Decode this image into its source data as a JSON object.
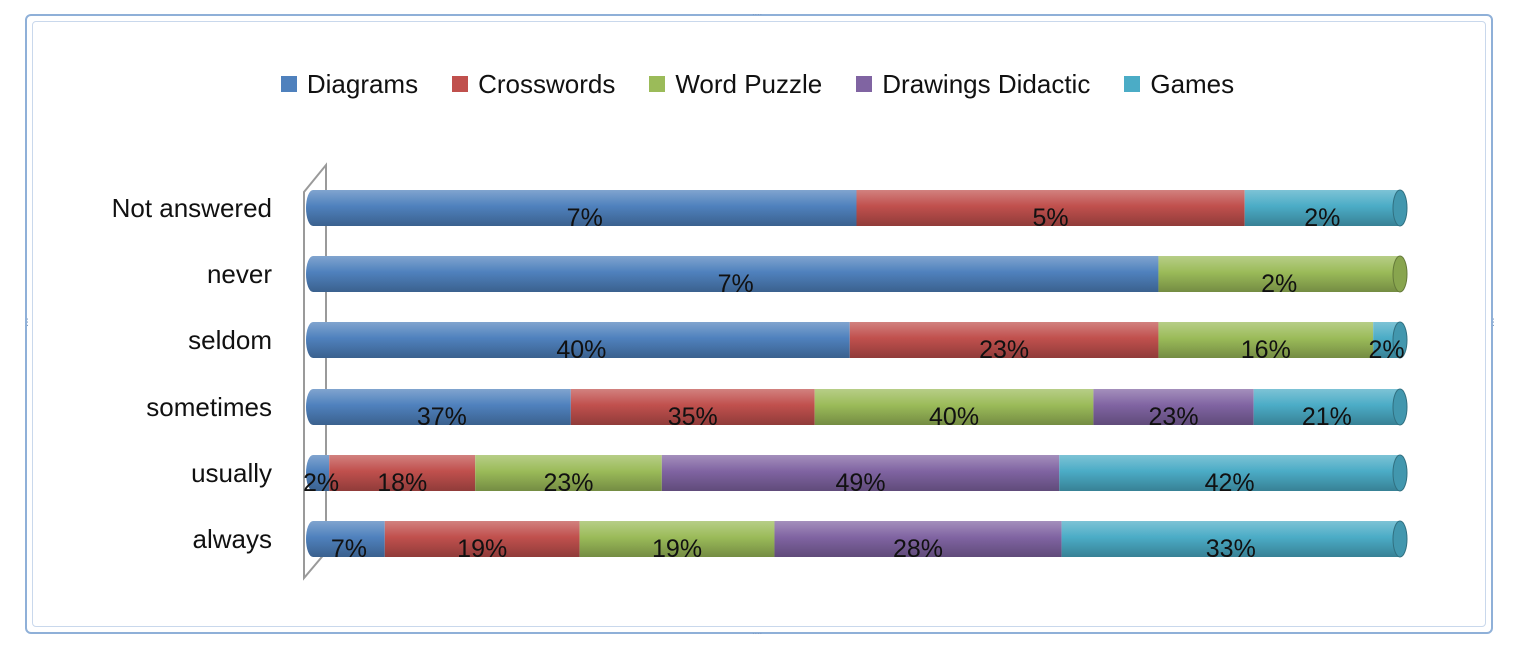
{
  "chart_data": {
    "type": "bar",
    "orientation": "horizontal",
    "stacked": "percent",
    "style": "3d-cylinder",
    "categories": [
      "Not answered",
      "never",
      "seldom",
      "sometimes",
      "usually",
      "always"
    ],
    "series": [
      {
        "name": "Diagrams",
        "color": "#4f81bd",
        "values": [
          7,
          7,
          40,
          37,
          2,
          7
        ],
        "labels": [
          "7%",
          "7%",
          "40%",
          "37%",
          "2%",
          "7%"
        ]
      },
      {
        "name": "Crosswords",
        "color": "#c0504d",
        "values": [
          5,
          0,
          23,
          35,
          18,
          19
        ],
        "labels": [
          "5%",
          "",
          "23%",
          "35%",
          "18%",
          "19%"
        ]
      },
      {
        "name": "Word Puzzle",
        "color": "#9bbb59",
        "values": [
          0,
          2,
          16,
          40,
          23,
          19
        ],
        "labels": [
          "",
          "2%",
          "16%",
          "40%",
          "23%",
          "19%"
        ]
      },
      {
        "name": "Drawings Didactic",
        "color": "#8064a2",
        "values": [
          0,
          0,
          0,
          23,
          49,
          28
        ],
        "labels": [
          "",
          "",
          "",
          "23%",
          "49%",
          "28%"
        ]
      },
      {
        "name": "Games",
        "color": "#4bacc6",
        "values": [
          2,
          0,
          2,
          21,
          42,
          33
        ],
        "labels": [
          "2%",
          "",
          "2%",
          "21%",
          "42%",
          "33%"
        ]
      }
    ],
    "legend_position": "top",
    "grid": false
  }
}
